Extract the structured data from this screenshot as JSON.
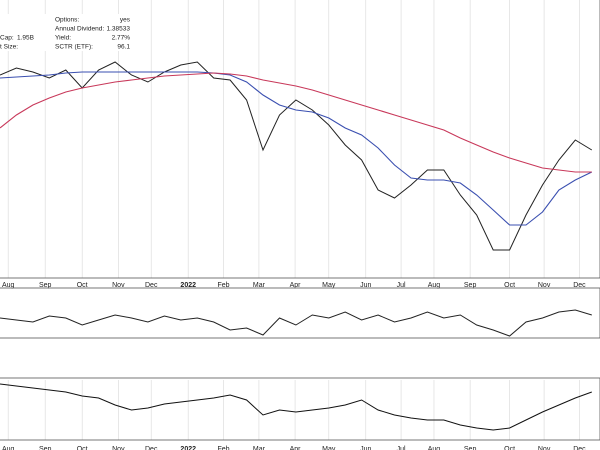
{
  "header": {
    "options_label": "Options:",
    "options_value": "yes",
    "dividend_label": "Annual Dividend:",
    "dividend_value": "1.38533",
    "yield_label": "Yield:",
    "yield_value": "2.77%",
    "sctr_label": "SCTR (ETF):",
    "sctr_value": "96.1",
    "cap_label": "Cap:",
    "cap_value": "1.95B",
    "size_label": "t Size:"
  },
  "chart_data": [
    {
      "type": "line",
      "grid": true,
      "x": [
        0,
        2,
        4,
        6,
        8,
        10,
        12,
        14,
        16,
        18,
        20,
        22,
        24,
        26,
        28,
        30,
        32,
        34,
        36,
        38,
        40,
        42,
        44,
        46,
        48,
        50,
        52,
        54,
        56,
        58,
        60,
        62,
        64,
        66,
        68,
        70,
        72
      ],
      "xlim": [
        0,
        73
      ],
      "ylim": [
        0,
        278
      ],
      "xticks": [
        {
          "value": 1,
          "label": "Aug"
        },
        {
          "value": 5.5,
          "label": "Sep"
        },
        {
          "value": 10,
          "label": "Oct"
        },
        {
          "value": 14.4,
          "label": "Nov"
        },
        {
          "value": 18.4,
          "label": "Dec"
        },
        {
          "value": 22.9,
          "label": "2022"
        },
        {
          "value": 27.2,
          "label": "Feb"
        },
        {
          "value": 31.5,
          "label": "Mar"
        },
        {
          "value": 35.9,
          "label": "Apr"
        },
        {
          "value": 40,
          "label": "May"
        },
        {
          "value": 44.5,
          "label": "Jun"
        },
        {
          "value": 48.8,
          "label": "Jul"
        },
        {
          "value": 52.8,
          "label": "Aug"
        },
        {
          "value": 57.2,
          "label": "Sep"
        },
        {
          "value": 62,
          "label": "Oct"
        },
        {
          "value": 66.2,
          "label": "Nov"
        },
        {
          "value": 70.5,
          "label": "Dec"
        }
      ],
      "series": [
        {
          "color": "#222222",
          "values": [
            203,
            210,
            206,
            200,
            208,
            190,
            208,
            216,
            203,
            196,
            206,
            213,
            216,
            200,
            198,
            178,
            128,
            163,
            178,
            168,
            153,
            133,
            118,
            88,
            80,
            93,
            108,
            108,
            83,
            63,
            28,
            28,
            63,
            93,
            118,
            138,
            128
          ]
        },
        {
          "color": "#3a4fb0",
          "values": [
            200,
            201,
            202,
            203,
            205,
            206,
            206,
            206,
            206,
            206,
            206,
            206,
            206,
            205,
            203,
            196,
            183,
            173,
            168,
            166,
            160,
            150,
            143,
            130,
            113,
            100,
            98,
            98,
            95,
            83,
            68,
            53,
            53,
            66,
            88,
            98,
            106
          ]
        },
        {
          "color": "#c8385a",
          "values": [
            150,
            163,
            173,
            180,
            186,
            190,
            193,
            196,
            198,
            200,
            202,
            203,
            204,
            205,
            204,
            202,
            198,
            195,
            192,
            188,
            183,
            178,
            173,
            168,
            163,
            158,
            153,
            148,
            140,
            133,
            126,
            120,
            115,
            110,
            108,
            106,
            106
          ]
        }
      ]
    },
    {
      "type": "line",
      "grid": false,
      "x": [
        0,
        2,
        4,
        6,
        8,
        10,
        12,
        14,
        16,
        18,
        20,
        22,
        24,
        26,
        28,
        30,
        32,
        34,
        36,
        38,
        40,
        42,
        44,
        46,
        48,
        50,
        52,
        54,
        56,
        58,
        60,
        62,
        64,
        66,
        68,
        70,
        72
      ],
      "xlim": [
        0,
        73
      ],
      "ylim": [
        0,
        48
      ],
      "series": [
        {
          "color": "#222222",
          "values": [
            20,
            18,
            16,
            22,
            20,
            13,
            18,
            23,
            20,
            16,
            22,
            18,
            20,
            16,
            8,
            10,
            3,
            20,
            13,
            23,
            20,
            26,
            18,
            23,
            16,
            20,
            26,
            20,
            23,
            13,
            8,
            2,
            16,
            20,
            26,
            28,
            23
          ]
        }
      ]
    },
    {
      "type": "line",
      "grid": true,
      "x": [
        0,
        2,
        4,
        6,
        8,
        10,
        12,
        14,
        16,
        18,
        20,
        22,
        24,
        26,
        28,
        30,
        32,
        34,
        36,
        38,
        40,
        42,
        44,
        46,
        48,
        50,
        52,
        54,
        56,
        58,
        60,
        62,
        64,
        66,
        68,
        70,
        72
      ],
      "xlim": [
        0,
        73
      ],
      "ylim": [
        0,
        60
      ],
      "xticks": [
        {
          "value": 1,
          "label": "Aug"
        },
        {
          "value": 5.5,
          "label": "Sep"
        },
        {
          "value": 10,
          "label": "Oct"
        },
        {
          "value": 14.4,
          "label": "Nov"
        },
        {
          "value": 18.4,
          "label": "Dec"
        },
        {
          "value": 22.9,
          "label": "2022"
        },
        {
          "value": 27.2,
          "label": "Feb"
        },
        {
          "value": 31.5,
          "label": "Mar"
        },
        {
          "value": 35.9,
          "label": "Apr"
        },
        {
          "value": 40,
          "label": "May"
        },
        {
          "value": 44.5,
          "label": "Jun"
        },
        {
          "value": 48.8,
          "label": "Jul"
        },
        {
          "value": 52.8,
          "label": "Aug"
        },
        {
          "value": 57.2,
          "label": "Sep"
        },
        {
          "value": 62,
          "label": "Oct"
        },
        {
          "value": 66.2,
          "label": "Nov"
        },
        {
          "value": 70.5,
          "label": "Dec"
        }
      ],
      "series": [
        {
          "color": "#111111",
          "values": [
            56,
            54,
            52,
            50,
            48,
            44,
            42,
            35,
            30,
            32,
            36,
            38,
            40,
            42,
            45,
            40,
            25,
            30,
            28,
            30,
            32,
            35,
            40,
            30,
            25,
            22,
            20,
            20,
            15,
            12,
            10,
            12,
            20,
            28,
            35,
            42,
            48
          ]
        }
      ]
    }
  ]
}
